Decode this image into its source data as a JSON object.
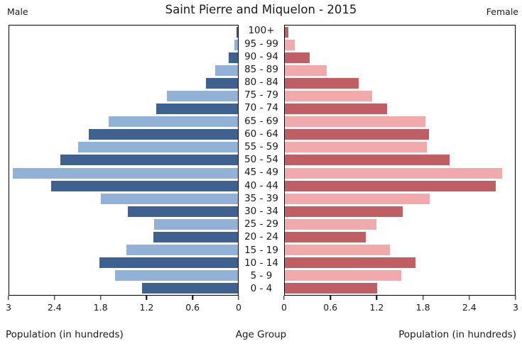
{
  "header": {
    "title": "Saint Pierre and Miquelon - 2015",
    "left_label": "Male",
    "right_label": "Female"
  },
  "axes": {
    "xlabel_left": "Population (in hundreds)",
    "center_label": "Age Group",
    "xlabel_right": "Population (in hundreds)",
    "tick_values": [
      0,
      0.6,
      1.2,
      1.8,
      2.4,
      3
    ],
    "tick_labels": [
      "0",
      "0.6",
      "1.2",
      "1.8",
      "2.4",
      "3"
    ],
    "xlim": [
      0,
      3
    ]
  },
  "chart_data": {
    "type": "bar",
    "subtype": "population-pyramid",
    "title": "Saint Pierre and Miquelon - 2015",
    "xlabel": "Population (in hundreds)",
    "ylabel": "Age Group",
    "xlim": [
      0,
      3
    ],
    "grid": false,
    "categories": [
      "100+",
      "95 - 99",
      "90 - 94",
      "85 - 89",
      "80 - 84",
      "75 - 79",
      "70 - 74",
      "65 - 69",
      "60 - 64",
      "55 - 59",
      "50 - 54",
      "45 - 49",
      "40 - 44",
      "35 - 39",
      "30 - 34",
      "25 - 29",
      "20 - 24",
      "15 - 19",
      "10 - 14",
      "5 - 9",
      "0 - 4"
    ],
    "series": [
      {
        "name": "Male",
        "side": "left",
        "values": [
          0.02,
          0.05,
          0.12,
          0.3,
          0.42,
          0.93,
          1.07,
          1.7,
          1.96,
          2.1,
          2.33,
          2.95,
          2.45,
          1.8,
          1.44,
          1.1,
          1.11,
          1.46,
          1.82,
          1.61,
          1.26
        ]
      },
      {
        "name": "Female",
        "side": "right",
        "values": [
          0.05,
          0.13,
          0.32,
          0.55,
          0.96,
          1.14,
          1.33,
          1.83,
          1.88,
          1.85,
          2.15,
          2.83,
          2.75,
          1.89,
          1.54,
          1.19,
          1.06,
          1.37,
          1.7,
          1.52,
          1.2
        ]
      }
    ],
    "colors": {
      "male_dark": "#3f618f",
      "male_light": "#92b1d6",
      "female_dark": "#c05f63",
      "female_light": "#f2a9ac",
      "border": "#000000",
      "text": "#1a1a1a"
    }
  }
}
